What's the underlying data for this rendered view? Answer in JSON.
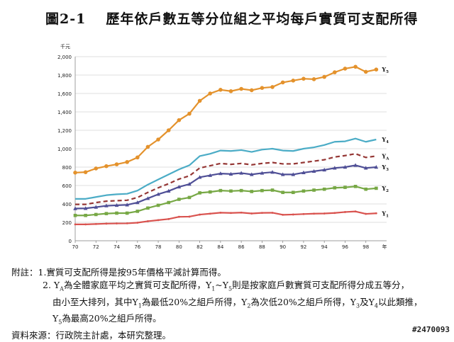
{
  "figure": {
    "number": "圖2-1",
    "title": "歷年依戶數五等分位組之平均每戶實質可支配所得"
  },
  "chart_data": {
    "type": "line",
    "unit_label": "千元",
    "x_unit_label": "年",
    "x": [
      70,
      71,
      72,
      73,
      74,
      75,
      76,
      77,
      78,
      79,
      80,
      81,
      82,
      83,
      84,
      85,
      86,
      87,
      88,
      89,
      90,
      91,
      92,
      93,
      94,
      95,
      96,
      97,
      98,
      99
    ],
    "x_ticks": [
      70,
      72,
      74,
      76,
      78,
      80,
      82,
      84,
      86,
      88,
      90,
      92,
      94,
      96,
      98
    ],
    "y_ticks": [
      0,
      200,
      400,
      600,
      800,
      1000,
      1200,
      1400,
      1600,
      1800,
      2000
    ],
    "y_tick_labels": [
      "0",
      "200",
      "400",
      "600",
      "800",
      "1,000",
      "1,200",
      "1,400",
      "1,600",
      "1,800",
      "2,000"
    ],
    "ylim": [
      0,
      2000
    ],
    "grid": "horizontal",
    "series": [
      {
        "name": "Y5",
        "label_main": "Y",
        "label_sub": "5",
        "color": "#e4922c",
        "marker": "circle",
        "dash": "",
        "values": [
          740,
          745,
          785,
          810,
          830,
          855,
          905,
          1020,
          1100,
          1200,
          1310,
          1380,
          1520,
          1600,
          1640,
          1625,
          1650,
          1635,
          1660,
          1670,
          1720,
          1740,
          1760,
          1755,
          1780,
          1830,
          1870,
          1890,
          1835,
          1860
        ]
      },
      {
        "name": "Y4",
        "label_main": "Y",
        "label_sub": "4",
        "color": "#4bacc6",
        "marker": "none",
        "dash": "",
        "values": [
          455,
          455,
          475,
          495,
          505,
          510,
          545,
          610,
          665,
          720,
          775,
          820,
          920,
          945,
          980,
          975,
          985,
          965,
          990,
          1000,
          980,
          975,
          1000,
          1015,
          1040,
          1075,
          1080,
          1110,
          1075,
          1100
        ]
      },
      {
        "name": "YA",
        "label_main": "Y",
        "label_sub": "A",
        "color": "#953735",
        "marker": "none",
        "dash": "6,4",
        "values": [
          395,
          395,
          415,
          430,
          435,
          440,
          470,
          525,
          575,
          620,
          670,
          705,
          790,
          815,
          840,
          830,
          840,
          825,
          840,
          850,
          835,
          835,
          850,
          865,
          880,
          910,
          925,
          945,
          905,
          920
        ]
      },
      {
        "name": "Y3",
        "label_main": "Y",
        "label_sub": "3",
        "color": "#4f4f96",
        "marker": "triangle",
        "dash": "",
        "values": [
          350,
          352,
          365,
          380,
          385,
          390,
          415,
          460,
          505,
          540,
          585,
          615,
          690,
          710,
          730,
          725,
          735,
          720,
          735,
          745,
          720,
          720,
          740,
          755,
          770,
          790,
          800,
          820,
          790,
          800
        ]
      },
      {
        "name": "Y2",
        "label_main": "Y",
        "label_sub": "2",
        "color": "#77a845",
        "marker": "square",
        "dash": "",
        "values": [
          275,
          275,
          285,
          295,
          300,
          300,
          320,
          355,
          385,
          415,
          450,
          470,
          520,
          530,
          545,
          540,
          545,
          535,
          545,
          550,
          525,
          525,
          540,
          550,
          560,
          575,
          580,
          590,
          560,
          570
        ]
      },
      {
        "name": "Y1",
        "label_main": "Y",
        "label_sub": "1",
        "color": "#d9534f",
        "marker": "small",
        "dash": "",
        "values": [
          178,
          178,
          182,
          186,
          188,
          189,
          196,
          212,
          224,
          236,
          260,
          262,
          284,
          294,
          305,
          302,
          306,
          296,
          303,
          304,
          282,
          285,
          290,
          294,
          296,
          302,
          312,
          318,
          292,
          298
        ]
      }
    ]
  },
  "notes": {
    "line1": "附註：1.實質可支配所得是按95年價格平減計算而得。",
    "line2_a": "2. Y",
    "line2_a_sub": "A",
    "line2_b": "為全體家庭平均之實質可支配所得，Y",
    "line2_b_sub": "1",
    "line2_c": "~Y",
    "line2_c_sub": "5",
    "line2_d": "則是按家庭戶數實質可支配所得分成五等分，",
    "line3_a": "由小至大排列，其中Y",
    "line3_a_sub": "1",
    "line3_b": "為最低20%之組戶所得，Y",
    "line3_b_sub": "2",
    "line3_c": "為次低20%之組戶所得，Y",
    "line3_c_sub": "3",
    "line3_d": "及Y",
    "line3_d_sub": "4",
    "line3_e": "以此類推，",
    "line4_a": "Y",
    "line4_a_sub": "5",
    "line4_b": "為最高20%之組戶所得。",
    "source": "資料來源：行政院主計處，本研究整理。"
  },
  "stamp": "#2470093"
}
